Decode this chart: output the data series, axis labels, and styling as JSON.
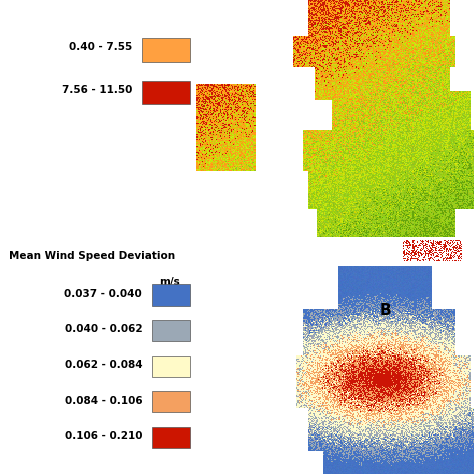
{
  "background_color": "#ffffff",
  "figsize": [
    4.74,
    4.74
  ],
  "dpi": 100,
  "panel_a": {
    "legend_entries": [
      {
        "label": "0.40 - 7.55",
        "color": "#FFA040"
      },
      {
        "label": "7.56 - 11.50",
        "color": "#CC1500"
      }
    ],
    "colors": {
      "low": "#78B800",
      "mid_low": "#A8CC00",
      "mid": "#CCDD00",
      "high": "#FFA040",
      "very_high": "#CC1500",
      "sea": "#ffffff"
    }
  },
  "panel_b": {
    "legend_title_line1": "Mean Wind Speed Deviation",
    "legend_title_line2": "m/s",
    "legend_entries": [
      {
        "label": "0.037 - 0.040",
        "color": "#4472C4"
      },
      {
        "label": "0.040 - 0.062",
        "color": "#9BA8B5"
      },
      {
        "label": "0.062 - 0.084",
        "color": "#FFFAC8"
      },
      {
        "label": "0.084 - 0.106",
        "color": "#F4A060"
      },
      {
        "label": "0.106 - 0.210",
        "color": "#CC1500"
      }
    ],
    "label": "B"
  }
}
